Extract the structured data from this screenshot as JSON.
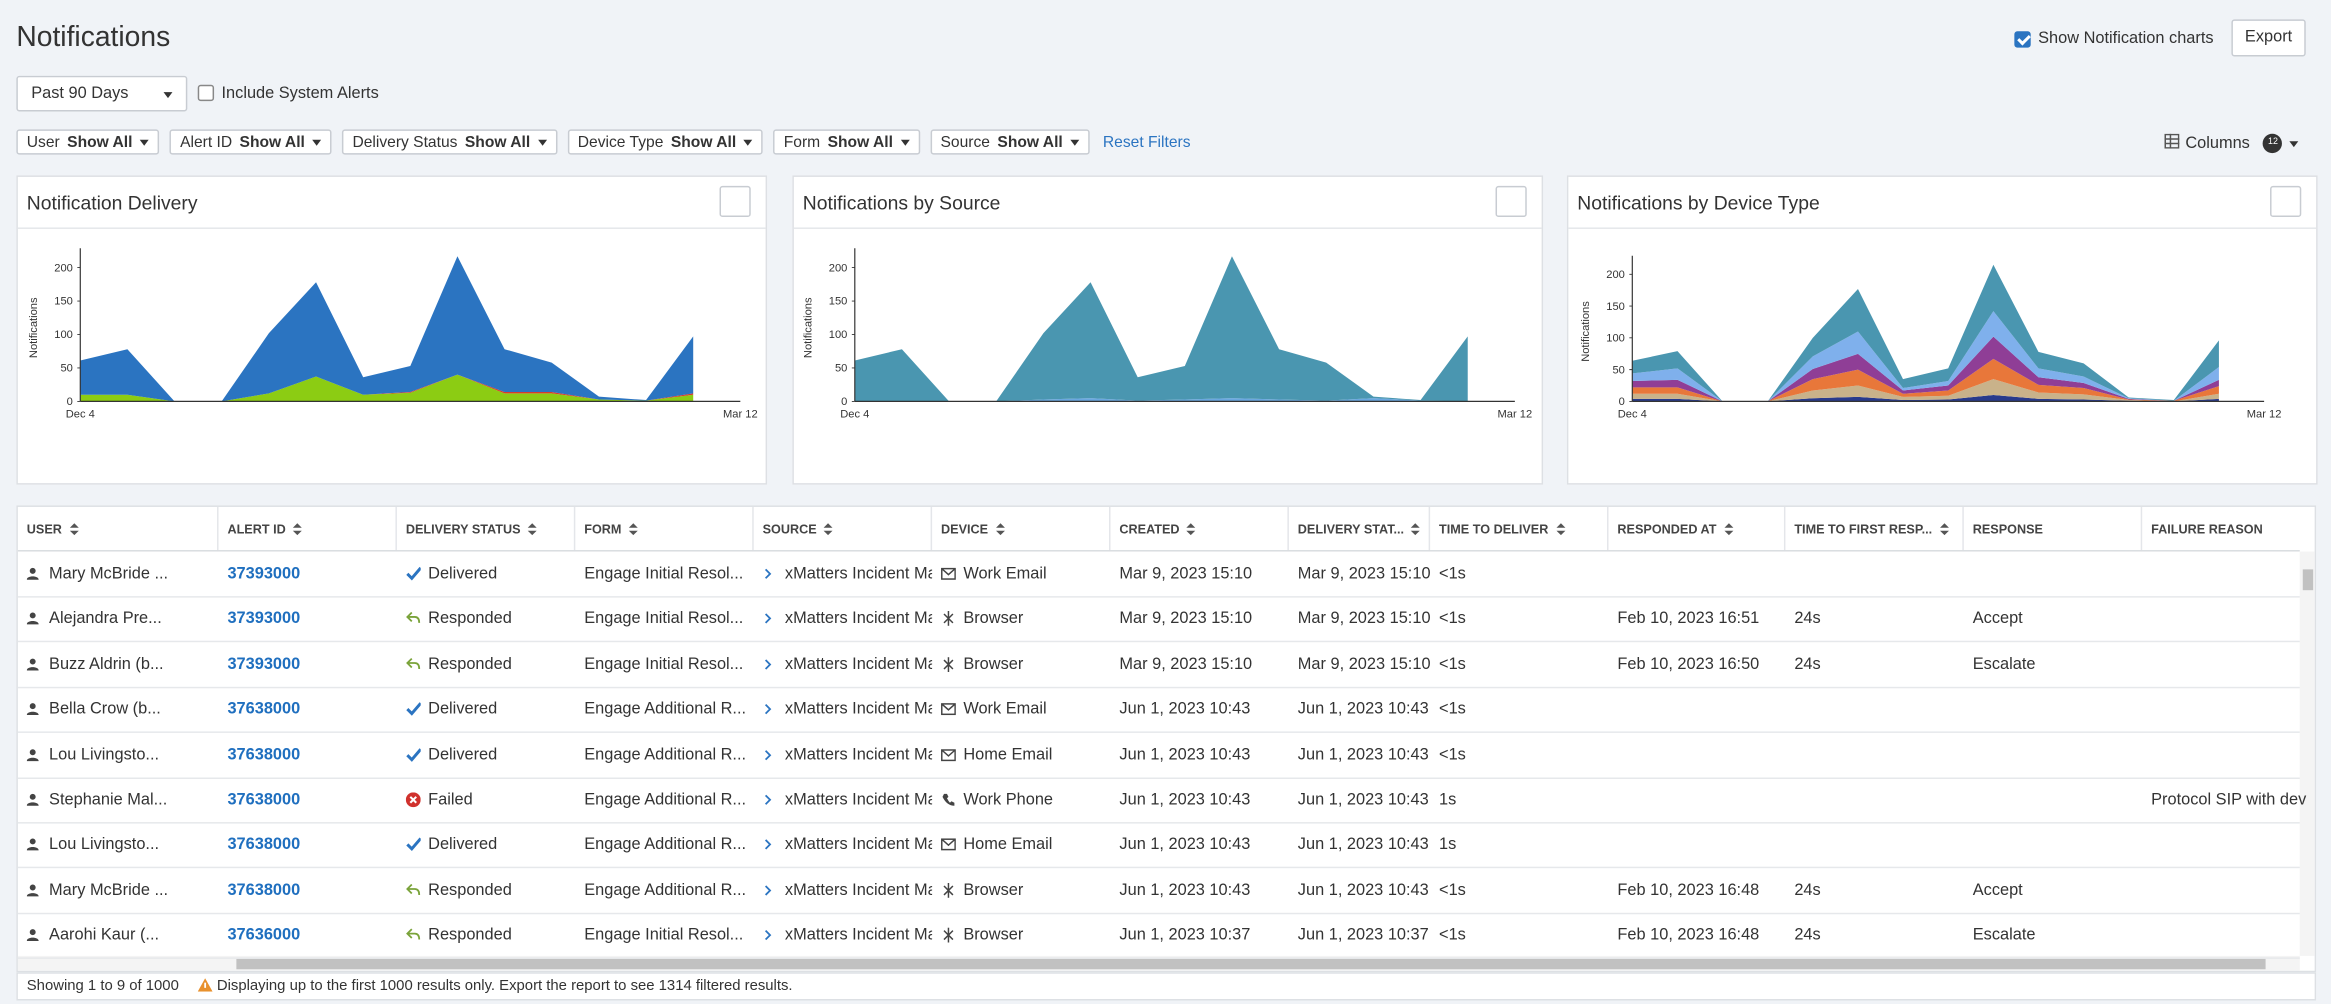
{
  "header": {
    "title": "Notifications",
    "show_charts": "Show Notification charts",
    "export": "Export"
  },
  "toolbar": {
    "range": "Past 90 Days",
    "system_alerts": "Include System Alerts"
  },
  "filters": [
    {
      "label": "User",
      "value": "Show All"
    },
    {
      "label": "Alert ID",
      "value": "Show All"
    },
    {
      "label": "Delivery Status",
      "value": "Show All"
    },
    {
      "label": "Device Type",
      "value": "Show All"
    },
    {
      "label": "Form",
      "value": "Show All"
    },
    {
      "label": "Source",
      "value": "Show All"
    }
  ],
  "reset": "Reset Filters",
  "columns_button": {
    "label": "Columns",
    "count": 12
  },
  "chart_data": [
    {
      "type": "area",
      "title": "Notification Delivery",
      "y_label": "Notifications",
      "categories": [
        "Dec 4",
        null,
        null,
        null,
        null,
        null,
        null,
        null,
        null,
        null,
        null,
        null,
        null,
        null,
        "Mar 12"
      ],
      "ylim": [
        0,
        220
      ],
      "yticks": [
        0,
        50,
        100,
        150,
        200
      ],
      "series": [
        {
          "color": "#8ccc13",
          "values": [
            10,
            10,
            0,
            0,
            12,
            37,
            10,
            13,
            40,
            12,
            12,
            3,
            1,
            10,
            null
          ]
        },
        {
          "color": "#d93b2b",
          "values": [
            0,
            0,
            0,
            0,
            0,
            0,
            0,
            1,
            0,
            2,
            2,
            0,
            0,
            2,
            null
          ]
        },
        {
          "color": "#2b74c1",
          "values": [
            51,
            68,
            0,
            0,
            90,
            141,
            26,
            39,
            177,
            64,
            44,
            4,
            1,
            85,
            null
          ]
        }
      ]
    },
    {
      "type": "area",
      "title": "Notifications by Source",
      "y_label": "Notifications",
      "categories": [
        "Dec 4",
        null,
        null,
        null,
        null,
        null,
        null,
        null,
        null,
        null,
        null,
        null,
        null,
        null,
        "Mar 12"
      ],
      "ylim": [
        0,
        220
      ],
      "yticks": [
        0,
        50,
        100,
        150,
        200
      ],
      "series": [
        {
          "color": "#6ba8e0",
          "values": [
            0,
            0,
            0,
            0,
            3,
            5,
            1,
            3,
            5,
            3,
            1,
            5,
            1,
            0,
            null
          ]
        },
        {
          "color": "#4a96b0",
          "values": [
            61,
            78,
            0,
            0,
            99,
            173,
            35,
            50,
            212,
            75,
            57,
            2,
            1,
            97,
            null
          ]
        }
      ]
    },
    {
      "type": "area",
      "title": "Notifications by Device Type",
      "y_label": "Notifications",
      "categories": [
        "Dec 4",
        null,
        null,
        null,
        null,
        null,
        null,
        null,
        null,
        null,
        null,
        null,
        null,
        null,
        "Mar 12"
      ],
      "ylim": [
        0,
        220
      ],
      "yticks": [
        0,
        50,
        100,
        150,
        200
      ],
      "series": [
        {
          "color": "#283a8c",
          "values": [
            4,
            4,
            0,
            0,
            5,
            7,
            2,
            3,
            10,
            4,
            3,
            1,
            0,
            4,
            null
          ]
        },
        {
          "color": "#c9b28a",
          "values": [
            8,
            8,
            0,
            0,
            12,
            18,
            5,
            6,
            25,
            10,
            8,
            1,
            0,
            8,
            null
          ]
        },
        {
          "color": "#e8773a",
          "values": [
            10,
            10,
            0,
            0,
            18,
            25,
            5,
            8,
            32,
            12,
            10,
            1,
            1,
            12,
            null
          ]
        },
        {
          "color": "#8f3e96",
          "values": [
            10,
            12,
            0,
            0,
            16,
            25,
            5,
            8,
            35,
            12,
            8,
            1,
            0,
            10,
            null
          ]
        },
        {
          "color": "#7fb0ec",
          "values": [
            12,
            18,
            0,
            0,
            20,
            35,
            4,
            7,
            40,
            14,
            10,
            1,
            0,
            20,
            null
          ]
        },
        {
          "color": "#4a96b0",
          "values": [
            20,
            27,
            0,
            0,
            29,
            67,
            14,
            20,
            73,
            26,
            21,
            1,
            1,
            42,
            null
          ]
        }
      ]
    }
  ],
  "table": {
    "columns": [
      "USER",
      "ALERT ID",
      "DELIVERY STATUS",
      "FORM",
      "SOURCE",
      "DEVICE",
      "CREATED",
      "DELIVERY STAT...",
      "TIME TO DELIVER",
      "RESPONDED AT",
      "TIME TO FIRST RESP...",
      "RESPONSE",
      "FAILURE REASON"
    ],
    "rows": [
      [
        "Mary McBride ...",
        "37393000",
        "Delivered",
        "Engage Initial Resol...",
        "xMatters Incident Ma...",
        "Work Email",
        "Mar 9, 2023 15:10",
        "Mar 9, 2023 15:10",
        "<1s",
        null,
        null,
        null,
        null
      ],
      [
        "Alejandra Pre...",
        "37393000",
        "Responded",
        "Engage Initial Resol...",
        "xMatters Incident Ma...",
        "Browser",
        "Mar 9, 2023 15:10",
        "Mar 9, 2023 15:10",
        "<1s",
        "Feb 10, 2023 16:51",
        "24s",
        "Accept",
        null
      ],
      [
        "Buzz Aldrin (b...",
        "37393000",
        "Responded",
        "Engage Initial Resol...",
        "xMatters Incident Ma...",
        "Browser",
        "Mar 9, 2023 15:10",
        "Mar 9, 2023 15:10",
        "<1s",
        "Feb 10, 2023 16:50",
        "24s",
        "Escalate",
        null
      ],
      [
        "Bella Crow (b...",
        "37638000",
        "Delivered",
        "Engage Additional R...",
        "xMatters Incident Ma...",
        "Work Email",
        "Jun 1, 2023 10:43",
        "Jun 1, 2023 10:43",
        "<1s",
        null,
        null,
        null,
        null
      ],
      [
        "Lou Livingsto...",
        "37638000",
        "Delivered",
        "Engage Additional R...",
        "xMatters Incident Ma...",
        "Home Email",
        "Jun 1, 2023 10:43",
        "Jun 1, 2023 10:43",
        "<1s",
        null,
        null,
        null,
        null
      ],
      [
        "Stephanie Mal...",
        "37638000",
        "Failed",
        "Engage Additional R...",
        "xMatters Incident Ma...",
        "Work Phone",
        "Jun 1, 2023 10:43",
        "Jun 1, 2023 10:43",
        "1s",
        null,
        null,
        null,
        "Protocol SIP with dev"
      ],
      [
        "Lou Livingsto...",
        "37638000",
        "Delivered",
        "Engage Additional R...",
        "xMatters Incident Ma...",
        "Home Email",
        "Jun 1, 2023 10:43",
        "Jun 1, 2023 10:43",
        "1s",
        null,
        null,
        null,
        null
      ],
      [
        "Mary McBride ...",
        "37638000",
        "Responded",
        "Engage Additional R...",
        "xMatters Incident Ma...",
        "Browser",
        "Jun 1, 2023 10:43",
        "Jun 1, 2023 10:43",
        "<1s",
        "Feb 10, 2023 16:48",
        "24s",
        "Accept",
        null
      ],
      [
        "Aarohi Kaur (...",
        "37636000",
        "Responded",
        "Engage Initial Resol...",
        "xMatters Incident Ma...",
        "Browser",
        "Jun 1, 2023 10:37",
        "Jun 1, 2023 10:37",
        "<1s",
        "Feb 10, 2023 16:48",
        "24s",
        "Escalate",
        null
      ]
    ]
  },
  "footer": {
    "showing": "Showing 1 to 9 of 1000",
    "warning": "Displaying up to the first 1000 results only. Export the report to see 1314 filtered results."
  }
}
